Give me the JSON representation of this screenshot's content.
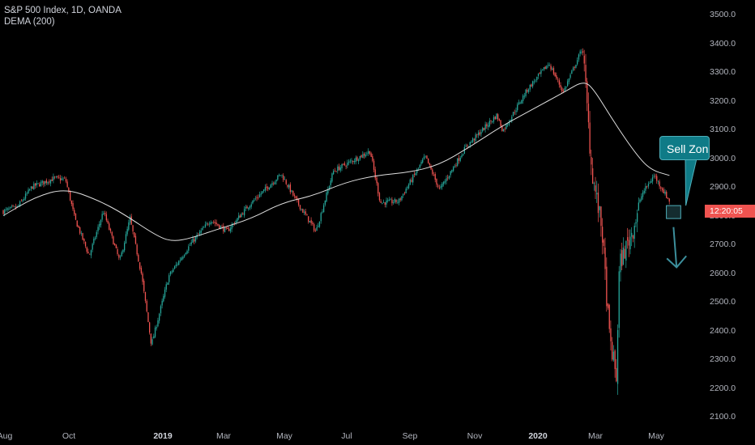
{
  "legend": {
    "symbol_line": "S&P 500 Index, 1D, OANDA",
    "indicator_line": "DEMA (200)"
  },
  "annotation": {
    "callout_text": "Sell Zon",
    "callout_color": "#0f7b87"
  },
  "current_price_badge": {
    "text": "12:20:05",
    "value": 2815,
    "color": "#ef5350"
  },
  "colors": {
    "up": "#26a69a",
    "down": "#ef5350",
    "dema_line": "#e0e0e0",
    "background": "#000000",
    "arrow": "#3c8f9c"
  },
  "chart_data": {
    "type": "candlestick",
    "title": "S&P 500 Index, 1D, OANDA",
    "indicator": "DEMA (200)",
    "ylim": [
      2070,
      3530
    ],
    "y_ticks": [
      "3500.0",
      "3400.0",
      "3300.0",
      "3200.0",
      "3100.0",
      "3000.0",
      "2900.0",
      "2800.0",
      "2700.0",
      "2600.0",
      "2500.0",
      "2400.0",
      "2300.0",
      "2200.0",
      "2100.0"
    ],
    "x_ticks": [
      {
        "label": "Aug",
        "bold": false
      },
      {
        "label": "Oct",
        "bold": false
      },
      {
        "label": "2019",
        "bold": true
      },
      {
        "label": "Mar",
        "bold": false
      },
      {
        "label": "May",
        "bold": false
      },
      {
        "label": "Jul",
        "bold": false
      },
      {
        "label": "Sep",
        "bold": false
      },
      {
        "label": "Nov",
        "bold": false
      },
      {
        "label": "2020",
        "bold": true
      },
      {
        "label": "Mar",
        "bold": false
      },
      {
        "label": "May",
        "bold": false
      }
    ],
    "close_series": {
      "name": "S&P 500 Index",
      "points": [
        [
          "2018-08-01",
          2815
        ],
        [
          "2018-08-15",
          2830
        ],
        [
          "2018-08-29",
          2900
        ],
        [
          "2018-09-20",
          2930
        ],
        [
          "2018-10-01",
          2925
        ],
        [
          "2018-10-10",
          2790
        ],
        [
          "2018-10-24",
          2660
        ],
        [
          "2018-11-07",
          2815
        ],
        [
          "2018-11-23",
          2640
        ],
        [
          "2018-12-03",
          2790
        ],
        [
          "2018-12-14",
          2600
        ],
        [
          "2018-12-24",
          2350
        ],
        [
          "2019-01-10",
          2590
        ],
        [
          "2019-02-01",
          2705
        ],
        [
          "2019-02-20",
          2785
        ],
        [
          "2019-03-08",
          2745
        ],
        [
          "2019-03-29",
          2835
        ],
        [
          "2019-04-30",
          2945
        ],
        [
          "2019-05-15",
          2850
        ],
        [
          "2019-06-03",
          2745
        ],
        [
          "2019-06-20",
          2955
        ],
        [
          "2019-07-26",
          3025
        ],
        [
          "2019-08-05",
          2845
        ],
        [
          "2019-08-23",
          2850
        ],
        [
          "2019-09-18",
          3005
        ],
        [
          "2019-10-02",
          2890
        ],
        [
          "2019-10-28",
          3040
        ],
        [
          "2019-11-27",
          3150
        ],
        [
          "2019-12-03",
          3095
        ],
        [
          "2019-12-27",
          3240
        ],
        [
          "2020-01-17",
          3330
        ],
        [
          "2020-01-31",
          3230
        ],
        [
          "2020-02-19",
          3385
        ],
        [
          "2020-02-28",
          2955
        ],
        [
          "2020-03-09",
          2750
        ],
        [
          "2020-03-16",
          2385
        ],
        [
          "2020-03-23",
          2235
        ],
        [
          "2020-03-26",
          2630
        ],
        [
          "2020-04-08",
          2750
        ],
        [
          "2020-04-17",
          2875
        ],
        [
          "2020-04-29",
          2940
        ],
        [
          "2020-05-14",
          2850
        ]
      ]
    },
    "dema_series": {
      "name": "DEMA (200)",
      "points": [
        [
          "2018-08-01",
          2800
        ],
        [
          "2018-09-01",
          2865
        ],
        [
          "2018-10-01",
          2895
        ],
        [
          "2018-11-01",
          2855
        ],
        [
          "2018-11-25",
          2810
        ],
        [
          "2018-12-31",
          2725
        ],
        [
          "2019-01-15",
          2710
        ],
        [
          "2019-02-01",
          2722
        ],
        [
          "2019-03-01",
          2755
        ],
        [
          "2019-04-01",
          2790
        ],
        [
          "2019-05-01",
          2845
        ],
        [
          "2019-06-01",
          2870
        ],
        [
          "2019-07-01",
          2915
        ],
        [
          "2019-08-01",
          2940
        ],
        [
          "2019-09-01",
          2950
        ],
        [
          "2019-10-01",
          2975
        ],
        [
          "2019-11-01",
          3040
        ],
        [
          "2019-12-01",
          3110
        ],
        [
          "2020-01-01",
          3170
        ],
        [
          "2020-02-01",
          3230
        ],
        [
          "2020-02-20",
          3270
        ],
        [
          "2020-03-01",
          3240
        ],
        [
          "2020-03-20",
          3130
        ],
        [
          "2020-04-10",
          3020
        ],
        [
          "2020-04-25",
          2960
        ],
        [
          "2020-05-14",
          2940
        ]
      ]
    },
    "sell_zone": {
      "start": "2020-05-11",
      "end": "2020-05-25",
      "low": 2790,
      "high": 2835
    },
    "arrow": {
      "from": [
        "2020-05-18",
        2760
      ],
      "to": [
        "2020-05-21",
        2620
      ]
    },
    "grid": false,
    "legend_position": "top-left"
  }
}
